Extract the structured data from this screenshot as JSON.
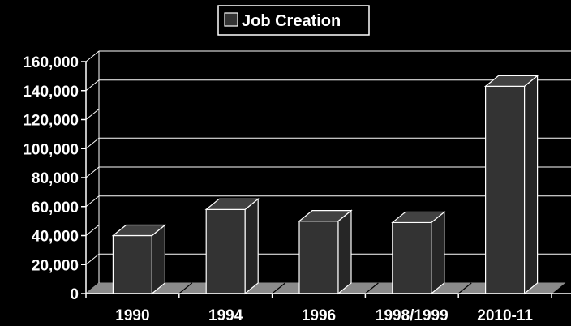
{
  "chart_data": {
    "type": "bar",
    "style": "3d-column",
    "legend": {
      "entries": [
        "Job Creation"
      ],
      "placement": "top-center"
    },
    "categories": [
      "1990",
      "1994",
      "1996",
      "1998/1999",
      "2010-11"
    ],
    "series": [
      {
        "name": "Job Creation",
        "values": [
          40000,
          58000,
          50000,
          49000,
          143000
        ]
      }
    ],
    "y_ticks": [
      "0",
      "20,000",
      "40,000",
      "60,000",
      "80,000",
      "100,000",
      "120,000",
      "140,000",
      "160,000"
    ],
    "ylim": [
      0,
      160000
    ],
    "grid": true,
    "colors": {
      "background": "#000000",
      "bar_front": "#333333",
      "bar_side": "#262626",
      "bar_top": "#424242",
      "bar_stroke": "#ffffff",
      "floor": "#8a8a8a",
      "grid": "#ffffff",
      "text": "#ffffff"
    }
  }
}
